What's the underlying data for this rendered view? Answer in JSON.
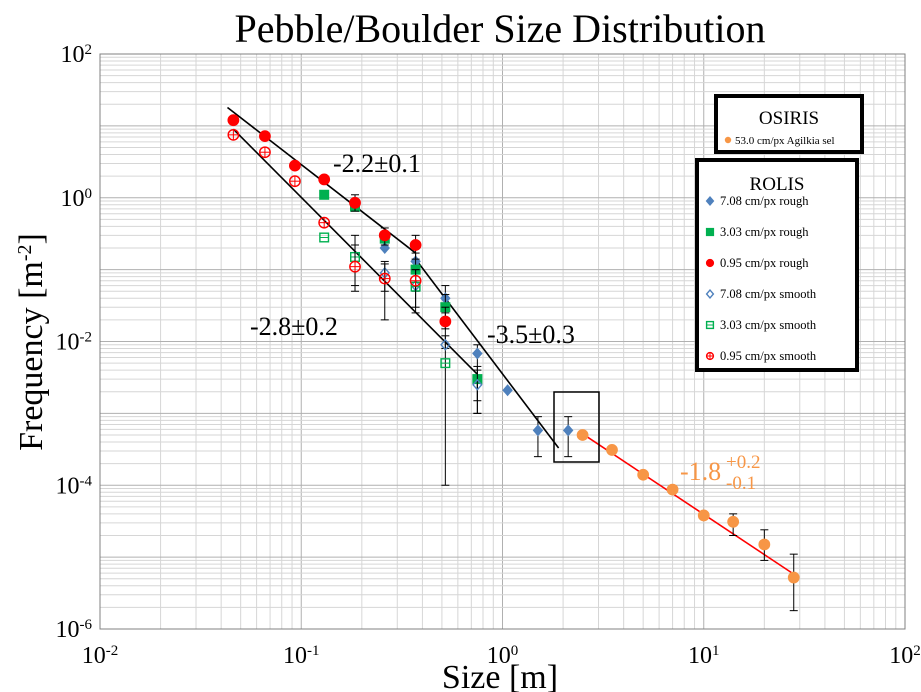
{
  "chart_data": {
    "type": "scatter",
    "title": "Pebble/Boulder Size Distribution",
    "xlabel": "Size [m]",
    "ylabel_main": "Frequency [m",
    "ylabel_sup": "-2",
    "ylabel_end": "]",
    "x_scale": "log",
    "y_scale": "log",
    "xlim": [
      0.01,
      100
    ],
    "ylim": [
      1e-06,
      100
    ],
    "grid": true,
    "x_ticks": [
      {
        "base": "10",
        "exp": "-2",
        "value": 0.01
      },
      {
        "base": "10",
        "exp": "-1",
        "value": 0.1
      },
      {
        "base": "10",
        "exp": "0",
        "value": 1
      },
      {
        "base": "10",
        "exp": "1",
        "value": 10
      },
      {
        "base": "10",
        "exp": "2",
        "value": 100
      }
    ],
    "y_ticks": [
      {
        "base": "10",
        "exp": "-6",
        "value": 1e-06
      },
      {
        "base": "10",
        "exp": "-4",
        "value": 0.0001
      },
      {
        "base": "10",
        "exp": "-2",
        "value": 0.01
      },
      {
        "base": "10",
        "exp": "0",
        "value": 1
      },
      {
        "base": "10",
        "exp": "2",
        "value": 100
      }
    ],
    "legends": [
      {
        "title": "OSIRIS",
        "entries": [
          {
            "label": "53.0 cm/px Agilkia sel",
            "series": "osiris"
          }
        ]
      },
      {
        "title": "ROLIS",
        "entries": [
          {
            "label": "7.08 cm/px rough",
            "series": "r708"
          },
          {
            "label": "3.03 cm/px rough",
            "series": "r303"
          },
          {
            "label": "0.95 cm/px rough",
            "series": "r095"
          },
          {
            "label": "7.08 cm/px smooth",
            "series": "s708"
          },
          {
            "label": "3.03 cm/px smooth",
            "series": "s303"
          },
          {
            "label": "0.95 cm/px smooth",
            "series": "s095"
          }
        ]
      }
    ],
    "series": [
      {
        "id": "r708",
        "marker": "diamond",
        "color": "#4f81bd",
        "filled": true,
        "points": [
          [
            0.26,
            0.2
          ],
          [
            0.37,
            0.13
          ],
          [
            0.52,
            0.04
          ],
          [
            0.75,
            0.0068
          ],
          [
            1.06,
            0.0021
          ],
          [
            1.5,
            0.00058
          ],
          [
            2.12,
            0.00058
          ]
        ],
        "errors": [
          null,
          null,
          [
            0.025,
            0.06
          ],
          [
            0.001,
            0.009
          ],
          null,
          [
            0.00025,
            0.0009
          ],
          [
            0.00025,
            0.0009
          ]
        ]
      },
      {
        "id": "r303",
        "marker": "square",
        "color": "#00b050",
        "filled": true,
        "points": [
          [
            0.13,
            1.1
          ],
          [
            0.185,
            0.75
          ],
          [
            0.26,
            0.27
          ],
          [
            0.37,
            0.1
          ],
          [
            0.52,
            0.03
          ],
          [
            0.75,
            0.003
          ]
        ],
        "errors": [
          null,
          null,
          null,
          [
            0.05,
            0.17
          ],
          [
            0.015,
            0.045
          ],
          [
            0.0015,
            0.0045
          ]
        ]
      },
      {
        "id": "r095",
        "marker": "circle",
        "color": "#ff0000",
        "filled": true,
        "points": [
          [
            0.046,
            12
          ],
          [
            0.066,
            7.2
          ],
          [
            0.093,
            2.8
          ],
          [
            0.13,
            1.8
          ],
          [
            0.185,
            0.85
          ],
          [
            0.26,
            0.3
          ],
          [
            0.37,
            0.22
          ],
          [
            0.52,
            0.019
          ]
        ],
        "errors": [
          null,
          null,
          null,
          null,
          [
            0.65,
            1.1
          ],
          [
            0.22,
            0.38
          ],
          [
            0.14,
            0.3
          ],
          [
            0.008,
            0.03
          ]
        ]
      },
      {
        "id": "s708",
        "marker": "diamond",
        "color": "#4f81bd",
        "filled": false,
        "points": [
          [
            0.26,
            0.09
          ],
          [
            0.37,
            0.06
          ],
          [
            0.52,
            0.009
          ],
          [
            0.75,
            0.0025
          ]
        ],
        "errors": [
          [
            0.05,
            0.13
          ],
          null,
          [
            0.0001,
            0.012
          ],
          [
            0.001,
            0.004
          ]
        ]
      },
      {
        "id": "s303",
        "marker": "square",
        "color": "#00b050",
        "filled": false,
        "points": [
          [
            0.13,
            0.28
          ],
          [
            0.185,
            0.15
          ],
          [
            0.37,
            0.058
          ],
          [
            0.52,
            0.005
          ]
        ],
        "errors": [
          null,
          [
            0.05,
            0.3
          ],
          [
            0.025,
            0.1
          ],
          null
        ]
      },
      {
        "id": "s095",
        "marker": "circle",
        "color": "#ff0000",
        "filled": false,
        "points": [
          [
            0.046,
            7.5
          ],
          [
            0.066,
            4.3
          ],
          [
            0.093,
            1.7
          ],
          [
            0.13,
            0.45
          ],
          [
            0.185,
            0.11
          ],
          [
            0.26,
            0.075
          ],
          [
            0.37,
            0.07
          ]
        ],
        "errors": [
          null,
          null,
          null,
          null,
          [
            0.06,
            0.22
          ],
          [
            0.02,
            0.12
          ],
          [
            0.03,
            0.1
          ]
        ]
      },
      {
        "id": "osiris",
        "marker": "circle",
        "color": "#f79646",
        "filled": true,
        "points": [
          [
            2.5,
            0.0005
          ],
          [
            3.5,
            0.00031
          ],
          [
            5,
            0.00014
          ],
          [
            7,
            8.7e-05
          ],
          [
            10,
            3.8e-05
          ],
          [
            14,
            3.1e-05
          ],
          [
            20,
            1.5e-05
          ],
          [
            28,
            5.2e-06
          ]
        ],
        "errors": [
          null,
          null,
          null,
          null,
          null,
          [
            2e-05,
            4e-05
          ],
          [
            9e-06,
            2.4e-05
          ],
          [
            1.8e-06,
            1.1e-05
          ]
        ]
      }
    ],
    "fits": [
      {
        "label": "-2.2±0.1",
        "color": "#000000",
        "from": [
          0.043,
          18
        ],
        "to": [
          0.37,
          0.17
        ]
      },
      {
        "label": "-2.8±0.2",
        "color": "#000000",
        "from": [
          0.046,
          9
        ],
        "to": [
          0.75,
          0.0035
        ]
      },
      {
        "label": "-3.5±0.3",
        "color": "#000000",
        "from": [
          0.37,
          0.14
        ],
        "to": [
          1.9,
          0.00033
        ]
      },
      {
        "color": "#ff0000",
        "from": [
          2.4,
          0.00056
        ],
        "to": [
          28,
          5.8e-06
        ]
      }
    ],
    "osiris_fit_label": {
      "base": "-1.8",
      "sup": "+0.2",
      "sub": "-0.1",
      "color": "#f79646"
    }
  }
}
